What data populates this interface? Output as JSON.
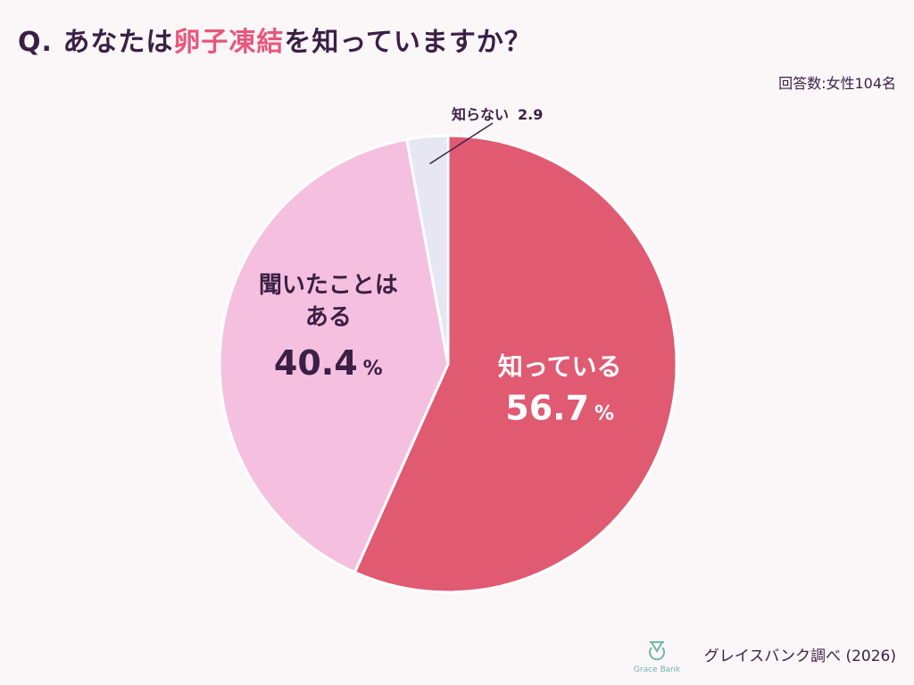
{
  "title": {
    "prefix": "Q. あなたは",
    "highlight": "卵子凍結",
    "suffix": "を知っていますか？"
  },
  "sample_note": "回答数:女性104名",
  "footer": {
    "logo_text": "Grace Bank",
    "source": "グレイスバンク調べ (2026)"
  },
  "colors": {
    "know": "#e05a72",
    "heard": "#f5c0df",
    "dont_know": "#e7e6f3",
    "title_highlight": "#e8577a",
    "logo": "#6fb7a8"
  },
  "chart_data": {
    "type": "pie",
    "categories": [
      "知っている",
      "聞いたことはある",
      "知らない"
    ],
    "values": [
      56.7,
      40.4,
      2.9
    ],
    "unit": "%",
    "label_lines": [
      [
        "知っている"
      ],
      [
        "聞いたことは",
        "ある"
      ],
      [
        "知らない"
      ]
    ],
    "value_labels": [
      "56.7",
      "40.4",
      "2.9"
    ],
    "start": "12 o'clock",
    "direction": "clockwise"
  }
}
